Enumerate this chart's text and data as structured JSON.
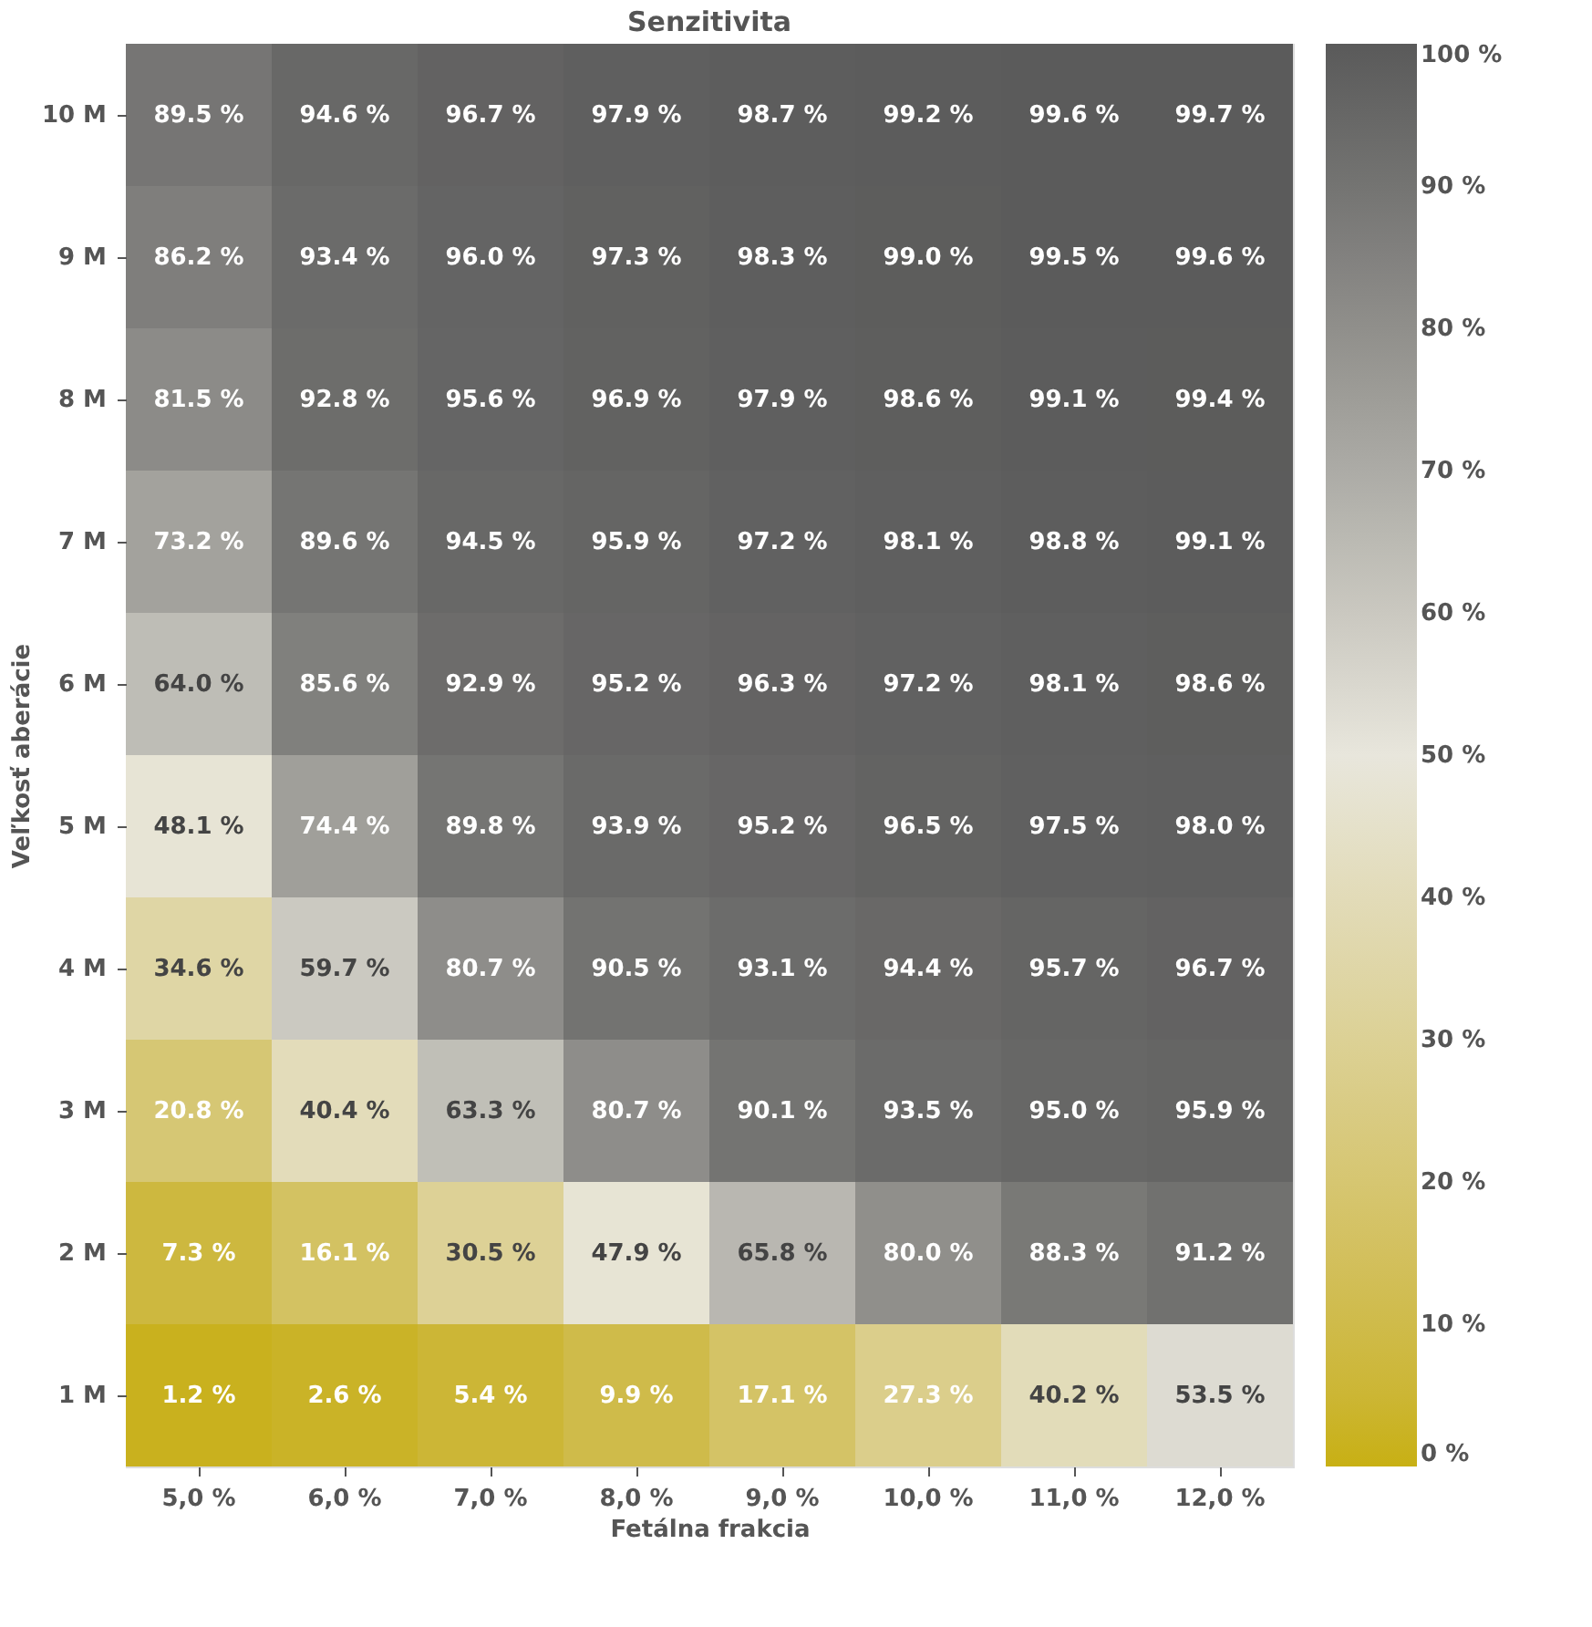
{
  "chart_data": {
    "type": "heatmap",
    "title": "Senzitivita",
    "xlabel": "Fetálna frakcia",
    "ylabel": "Veľkosť aberácie",
    "categories": [
      "5,0 %",
      "6,0 %",
      "7,0 %",
      "8,0 %",
      "9,0 %",
      "10,0 %",
      "11,0 %",
      "12,0 %"
    ],
    "y_categories": [
      "10 M",
      "9 M",
      "8 M",
      "7 M",
      "6 M",
      "5 M",
      "4 M",
      "3 M",
      "2 M",
      "1 M"
    ],
    "cells": [
      [
        89.5,
        94.6,
        96.7,
        97.9,
        98.7,
        99.2,
        99.6,
        99.7
      ],
      [
        86.2,
        93.4,
        96.0,
        97.3,
        98.3,
        99.0,
        99.5,
        99.6
      ],
      [
        81.5,
        92.8,
        95.6,
        96.9,
        97.9,
        98.6,
        99.1,
        99.4
      ],
      [
        73.2,
        89.6,
        94.5,
        95.9,
        97.2,
        98.1,
        98.8,
        99.1
      ],
      [
        64.0,
        85.6,
        92.9,
        95.2,
        96.3,
        97.2,
        98.1,
        98.6
      ],
      [
        48.1,
        74.4,
        89.8,
        93.9,
        95.2,
        96.5,
        97.5,
        98.0
      ],
      [
        34.6,
        59.7,
        80.7,
        90.5,
        93.1,
        94.4,
        95.7,
        96.7
      ],
      [
        20.8,
        40.4,
        63.3,
        80.7,
        90.1,
        93.5,
        95.0,
        95.9
      ],
      [
        7.3,
        16.1,
        30.5,
        47.9,
        65.8,
        80.0,
        88.3,
        91.2
      ],
      [
        1.2,
        2.6,
        5.4,
        9.9,
        17.1,
        27.3,
        40.2,
        53.5
      ]
    ],
    "cell_labels": [
      [
        "89.5 %",
        "94.6 %",
        "96.7 %",
        "97.9 %",
        "98.7 %",
        "99.2 %",
        "99.6 %",
        "99.7 %"
      ],
      [
        "86.2 %",
        "93.4 %",
        "96.0 %",
        "97.3 %",
        "98.3 %",
        "99.0 %",
        "99.5 %",
        "99.6 %"
      ],
      [
        "81.5 %",
        "92.8 %",
        "95.6 %",
        "96.9 %",
        "97.9 %",
        "98.6 %",
        "99.1 %",
        "99.4 %"
      ],
      [
        "73.2 %",
        "89.6 %",
        "94.5 %",
        "95.9 %",
        "97.2 %",
        "98.1 %",
        "98.8 %",
        "99.1 %"
      ],
      [
        "64.0 %",
        "85.6 %",
        "92.9 %",
        "95.2 %",
        "96.3 %",
        "97.2 %",
        "98.1 %",
        "98.6 %"
      ],
      [
        "48.1 %",
        "74.4 %",
        "89.8 %",
        "93.9 %",
        "95.2 %",
        "96.5 %",
        "97.5 %",
        "98.0 %"
      ],
      [
        "34.6 %",
        "59.7 %",
        "80.7 %",
        "90.5 %",
        "93.1 %",
        "94.4 %",
        "95.7 %",
        "96.7 %"
      ],
      [
        "20.8 %",
        "40.4 %",
        "63.3 %",
        "80.7 %",
        "90.1 %",
        "93.5 %",
        "95.0 %",
        "95.9 %"
      ],
      [
        "7.3 %",
        "16.1 %",
        "30.5 %",
        "47.9 %",
        "65.8 %",
        "80.0 %",
        "88.3 %",
        "91.2 %"
      ],
      [
        "1.2 %",
        "2.6 %",
        "5.4 %",
        "9.9 %",
        "17.1 %",
        "27.3 %",
        "40.2 %",
        "53.5 %"
      ]
    ],
    "clim": [
      0,
      100
    ],
    "cticks": [
      {
        "value": 0,
        "label": "0 %"
      },
      {
        "value": 10,
        "label": "10 %"
      },
      {
        "value": 20,
        "label": "20 %"
      },
      {
        "value": 30,
        "label": "30 %"
      },
      {
        "value": 40,
        "label": "40 %"
      },
      {
        "value": 50,
        "label": "50 %"
      },
      {
        "value": 60,
        "label": "60 %"
      },
      {
        "value": 70,
        "label": "70 %"
      },
      {
        "value": 80,
        "label": "80 %"
      },
      {
        "value": 90,
        "label": "90 %"
      },
      {
        "value": 100,
        "label": "100 %"
      }
    ]
  }
}
